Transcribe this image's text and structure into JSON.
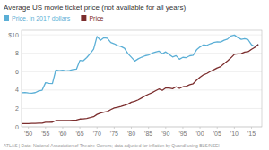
{
  "chart_data": {
    "type": "line",
    "title": "Average US movie ticket price (not available for all years)",
    "footer": "ATLAS | Data: National Association of Theatre Owners; data adjusted for inflation by Quandl using BLS/NSEI",
    "x": [
      1948,
      1949,
      1950,
      1951,
      1952,
      1953,
      1954,
      1955,
      1956,
      1957,
      1958,
      1959,
      1960,
      1961,
      1962,
      1963,
      1964,
      1965,
      1966,
      1967,
      1968,
      1969,
      1970,
      1971,
      1972,
      1973,
      1974,
      1975,
      1976,
      1977,
      1978,
      1979,
      1980,
      1981,
      1982,
      1983,
      1984,
      1985,
      1986,
      1987,
      1988,
      1989,
      1990,
      1991,
      1992,
      1993,
      1994,
      1995,
      1996,
      1997,
      1998,
      1999,
      2000,
      2001,
      2002,
      2003,
      2004,
      2005,
      2006,
      2007,
      2008,
      2009,
      2010,
      2011,
      2012,
      2013,
      2014,
      2015,
      2016,
      2017
    ],
    "series": [
      {
        "name": "Price, in 2017 dollars",
        "color": "#5BAFD6",
        "values": [
          3.7,
          3.74,
          3.68,
          3.66,
          3.72,
          3.9,
          3.98,
          4.8,
          4.73,
          4.7,
          6.18,
          6.11,
          6.15,
          6.09,
          6.13,
          6.24,
          6.28,
          7.23,
          7.19,
          7.53,
          7.96,
          8.44,
          9.83,
          9.41,
          9.69,
          9.63,
          9.18,
          9.04,
          8.83,
          8.74,
          8.55,
          7.96,
          7.57,
          7.16,
          7.4,
          7.58,
          7.73,
          7.81,
          8.0,
          8.12,
          8.23,
          7.94,
          8.15,
          7.87,
          7.6,
          7.74,
          7.35,
          7.56,
          7.53,
          7.73,
          7.79,
          8.38,
          8.69,
          8.92,
          8.87,
          9.04,
          9.17,
          9.24,
          9.22,
          9.42,
          9.54,
          9.88,
          9.98,
          9.71,
          9.51,
          9.6,
          9.48,
          8.93,
          8.73,
          8.97
        ]
      },
      {
        "name": "Price",
        "color": "#7B2D2D",
        "values": [
          0.36,
          0.36,
          0.36,
          0.37,
          0.38,
          0.4,
          0.41,
          0.5,
          0.5,
          0.51,
          0.68,
          0.68,
          0.69,
          0.69,
          0.7,
          0.72,
          0.73,
          0.85,
          0.86,
          0.92,
          1.0,
          1.1,
          1.35,
          1.5,
          1.6,
          1.67,
          1.87,
          2.05,
          2.13,
          2.23,
          2.34,
          2.47,
          2.69,
          2.78,
          2.94,
          3.15,
          3.36,
          3.55,
          3.71,
          3.91,
          4.11,
          3.97,
          4.23,
          4.21,
          4.15,
          4.35,
          4.18,
          4.35,
          4.42,
          4.59,
          4.69,
          5.08,
          5.39,
          5.66,
          5.81,
          6.03,
          6.21,
          6.41,
          6.55,
          6.88,
          7.18,
          7.5,
          7.89,
          7.93,
          7.96,
          8.13,
          8.17,
          8.43,
          8.65,
          8.97
        ]
      }
    ],
    "xlim": [
      1948,
      2018
    ],
    "xticks": [
      {
        "value": 1950,
        "label": "'50"
      },
      {
        "value": 1955,
        "label": "'55"
      },
      {
        "value": 1960,
        "label": "'60"
      },
      {
        "value": 1965,
        "label": "'65"
      },
      {
        "value": 1970,
        "label": "'70"
      },
      {
        "value": 1975,
        "label": "'75"
      },
      {
        "value": 1980,
        "label": "'80"
      },
      {
        "value": 1985,
        "label": "'85"
      },
      {
        "value": 1990,
        "label": "'90"
      },
      {
        "value": 1995,
        "label": "'95"
      },
      {
        "value": 2000,
        "label": "'00"
      },
      {
        "value": 2005,
        "label": "'05"
      },
      {
        "value": 2010,
        "label": "'10"
      },
      {
        "value": 2015,
        "label": "'15"
      }
    ],
    "ylim": [
      0,
      10.5
    ],
    "yticks": [
      0,
      2,
      4,
      6,
      8,
      {
        "value": 10,
        "label": "$10"
      }
    ],
    "grid": true,
    "legend": "top"
  }
}
